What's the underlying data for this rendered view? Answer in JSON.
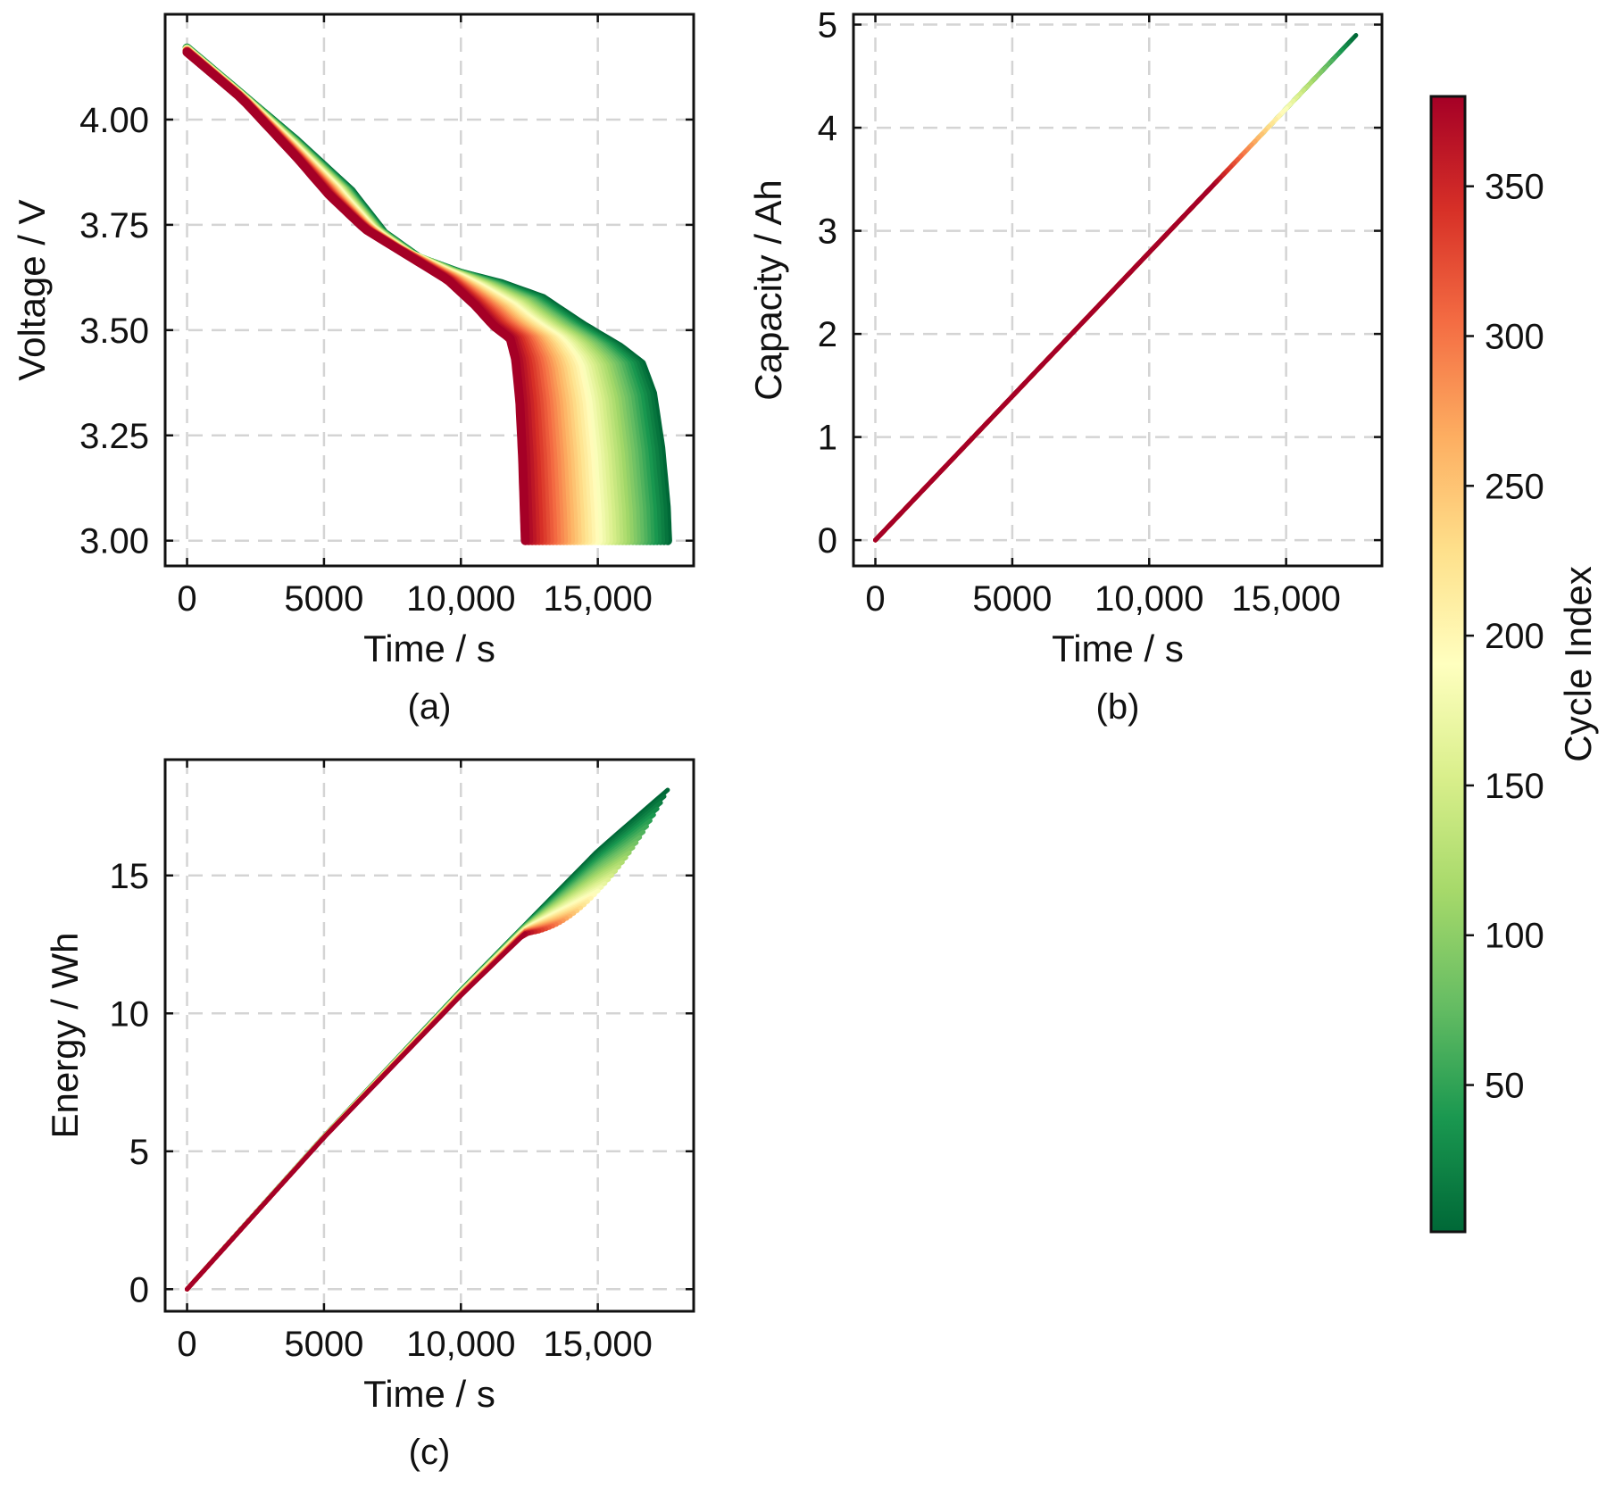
{
  "colormap": {
    "name": "RdYlGn_r",
    "stops": [
      "#006837",
      "#1a9850",
      "#66bd63",
      "#a6d96a",
      "#d9ef8b",
      "#ffffbf",
      "#fee08b",
      "#fdae61",
      "#f46d43",
      "#d73027",
      "#a50026"
    ]
  },
  "chart_data": [
    {
      "id": "a",
      "type": "line",
      "caption": "(a)",
      "xlabel": "Time / s",
      "ylabel": "Voltage / V",
      "xlim": [
        -800,
        18500
      ],
      "ylim": [
        2.94,
        4.25
      ],
      "xticks": [
        0,
        5000,
        10000,
        15000
      ],
      "xtick_labels": [
        "0",
        "5000",
        "10,000",
        "15,000"
      ],
      "yticks": [
        3.0,
        3.25,
        3.5,
        3.75,
        4.0
      ],
      "ytick_labels": [
        "3.00",
        "3.25",
        "3.50",
        "3.75",
        "4.00"
      ],
      "grid": true,
      "series_description": "One discharge curve per cycle (cycle index ~1 to ~380), colored by cycle index",
      "curve_cycle1": {
        "x": [
          0,
          2000,
          4000,
          6000,
          7200,
          8500,
          10000,
          11500,
          13000,
          14500,
          15800,
          16600,
          17000,
          17300,
          17500,
          17550
        ],
        "y": [
          4.17,
          4.06,
          3.95,
          3.83,
          3.73,
          3.67,
          3.635,
          3.61,
          3.575,
          3.51,
          3.46,
          3.42,
          3.35,
          3.22,
          3.08,
          3.0
        ]
      },
      "curve_cycle380": {
        "x": [
          0,
          2000,
          4000,
          5200,
          6500,
          8000,
          9500,
          10500,
          11200,
          11800,
          12000,
          12150,
          12250,
          12320,
          12350
        ],
        "y": [
          4.16,
          4.05,
          3.91,
          3.82,
          3.74,
          3.68,
          3.62,
          3.56,
          3.51,
          3.48,
          3.43,
          3.33,
          3.2,
          3.06,
          3.0
        ]
      },
      "cycle_range": [
        1,
        380
      ]
    },
    {
      "id": "b",
      "type": "line",
      "caption": "(b)",
      "xlabel": "Time / s",
      "ylabel": "Capacity / Ah",
      "xlim": [
        -800,
        18500
      ],
      "ylim": [
        -0.25,
        5.1
      ],
      "xticks": [
        0,
        5000,
        10000,
        15000
      ],
      "xtick_labels": [
        "0",
        "5000",
        "10,000",
        "15,000"
      ],
      "yticks": [
        0,
        1,
        2,
        3,
        4,
        5
      ],
      "ytick_labels": [
        "0",
        "1",
        "2",
        "3",
        "4",
        "5"
      ],
      "grid": true,
      "series_description": "Capacity rises linearly with time; curves overlap, older cycles end later",
      "slope_per_s": 0.000279,
      "end_time_cycle1": 17550,
      "end_time_cycle380": 12350,
      "cycle_range": [
        1,
        380
      ]
    },
    {
      "id": "c",
      "type": "line",
      "caption": "(c)",
      "xlabel": "Time / s",
      "ylabel": "Energy / Wh",
      "xlim": [
        -800,
        18500
      ],
      "ylim": [
        -0.8,
        19.2
      ],
      "xticks": [
        0,
        5000,
        10000,
        15000
      ],
      "xtick_labels": [
        "0",
        "5000",
        "10,000",
        "15,000"
      ],
      "yticks": [
        0,
        5,
        10,
        15
      ],
      "ytick_labels": [
        "0",
        "5",
        "10",
        "15"
      ],
      "grid": true,
      "series_description": "Energy rises approximately linearly with time; curves overlap, older cycles end later",
      "curve_cycle1": {
        "x": [
          0,
          5000,
          10000,
          15000,
          17550
        ],
        "y": [
          0,
          5.55,
          10.85,
          15.9,
          18.1
        ]
      },
      "curve_cycle380": {
        "x": [
          0,
          5000,
          10000,
          12350
        ],
        "y": [
          0,
          5.5,
          10.65,
          12.9
        ]
      },
      "cycle_range": [
        1,
        380
      ]
    }
  ],
  "colorbar": {
    "label": "Cycle Index",
    "vmin": 1,
    "vmax": 380,
    "ticks": [
      50,
      100,
      150,
      200,
      250,
      300,
      350
    ],
    "tick_labels": [
      "50",
      "100",
      "150",
      "200",
      "250",
      "300",
      "350"
    ]
  }
}
